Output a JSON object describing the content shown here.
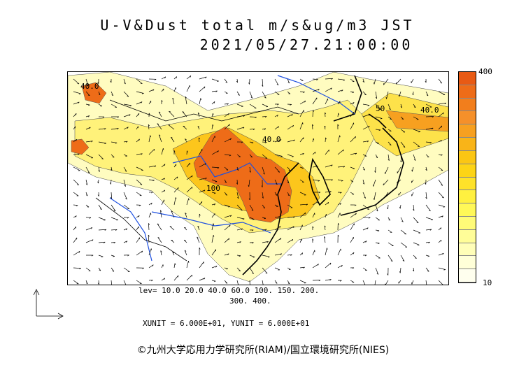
{
  "title": "U-V&Dust total m/s&ug/m3 JST",
  "datetime": "2021/05/27.21:00:00",
  "colorbar": {
    "max_label": "400",
    "min_label": "10",
    "colors": [
      "#e85a14",
      "#ee6c18",
      "#f27e1c",
      "#f5902a",
      "#f7a020",
      "#f9b418",
      "#fbc614",
      "#fdd416",
      "#fee22a",
      "#fff040",
      "#fff858",
      "#fffb78",
      "#fffd98",
      "#fffeb8",
      "#ffffd8",
      "#ffffee"
    ]
  },
  "map_labels": {
    "l1": "40.0",
    "l2": "40.0",
    "l3": "100",
    "l4": "50",
    "l5": "40.0"
  },
  "footer": {
    "levels_line1": "lev= 10.0 20.0 40.0 60.0 100. 150. 200.",
    "levels_line2": "300. 400.",
    "units": "XUNIT = 6.000E+01, YUNIT = 6.000E+01"
  },
  "copyright": "©九州大学応用力学研究所(RIAM)/国立環境研究所(NIES)"
}
